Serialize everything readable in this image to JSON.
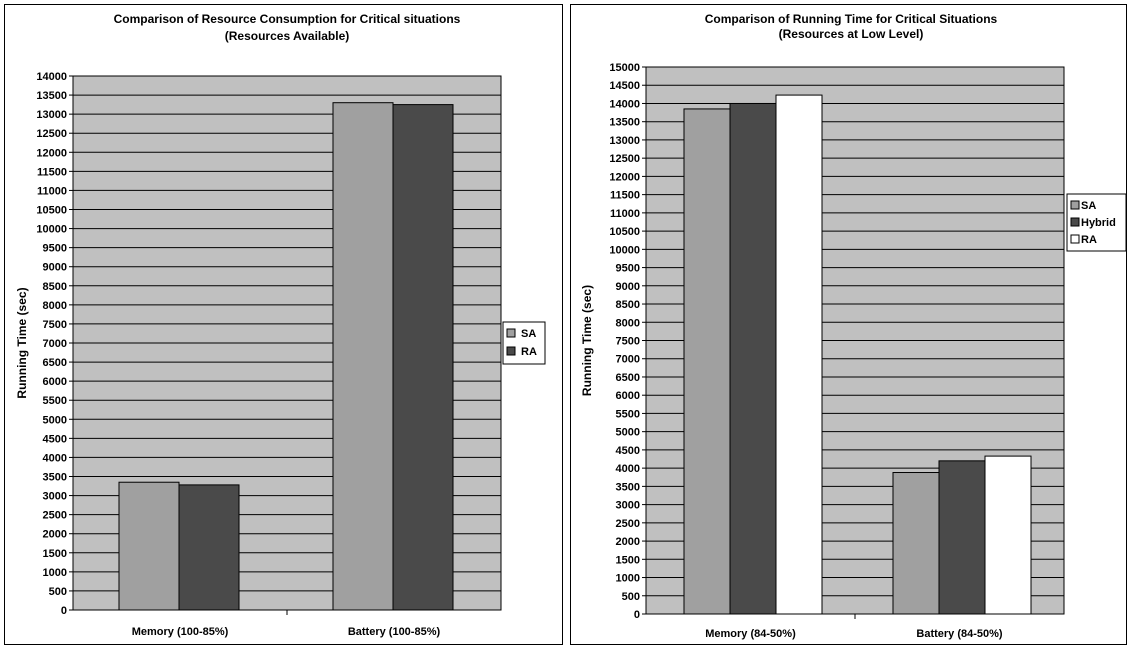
{
  "colors": {
    "plot_bg": "#c0c0c0",
    "grid": "#000000",
    "SA": "#a0a0a0",
    "Hybrid": "#4a4a4a",
    "RA_dark": "#4a4a4a",
    "RA_white": "#ffffff"
  },
  "chart_data": [
    {
      "type": "bar",
      "title": "Comparison of Resource Consumption for Critical situations",
      "subtitle": "(Resources Available)",
      "xlabel": "",
      "ylabel": "Running Time (sec)",
      "ylim": [
        0,
        14000
      ],
      "ytick_step": 500,
      "grid": true,
      "legend_placement": "right",
      "categories": [
        "Memory (100-85%)",
        "Battery (100-85%)"
      ],
      "series": [
        {
          "name": "SA",
          "color": "#a0a0a0",
          "values": [
            3350,
            13300
          ]
        },
        {
          "name": "RA",
          "color": "#4a4a4a",
          "values": [
            3280,
            13250
          ]
        }
      ]
    },
    {
      "type": "bar",
      "title": "Comparison of Running Time for Critical Situations",
      "subtitle": "(Resources at Low Level)",
      "xlabel": "",
      "ylabel": "Running Time (sec)",
      "ylim": [
        0,
        15000
      ],
      "ytick_step": 500,
      "grid": true,
      "legend_placement": "right",
      "categories": [
        "Memory (84-50%)",
        "Battery (84-50%)"
      ],
      "series": [
        {
          "name": "SA",
          "color": "#a0a0a0",
          "values": [
            13850,
            3880
          ]
        },
        {
          "name": "Hybrid",
          "color": "#4a4a4a",
          "values": [
            14000,
            4200
          ]
        },
        {
          "name": "RA",
          "color": "#ffffff",
          "values": [
            14230,
            4330
          ]
        }
      ]
    }
  ]
}
